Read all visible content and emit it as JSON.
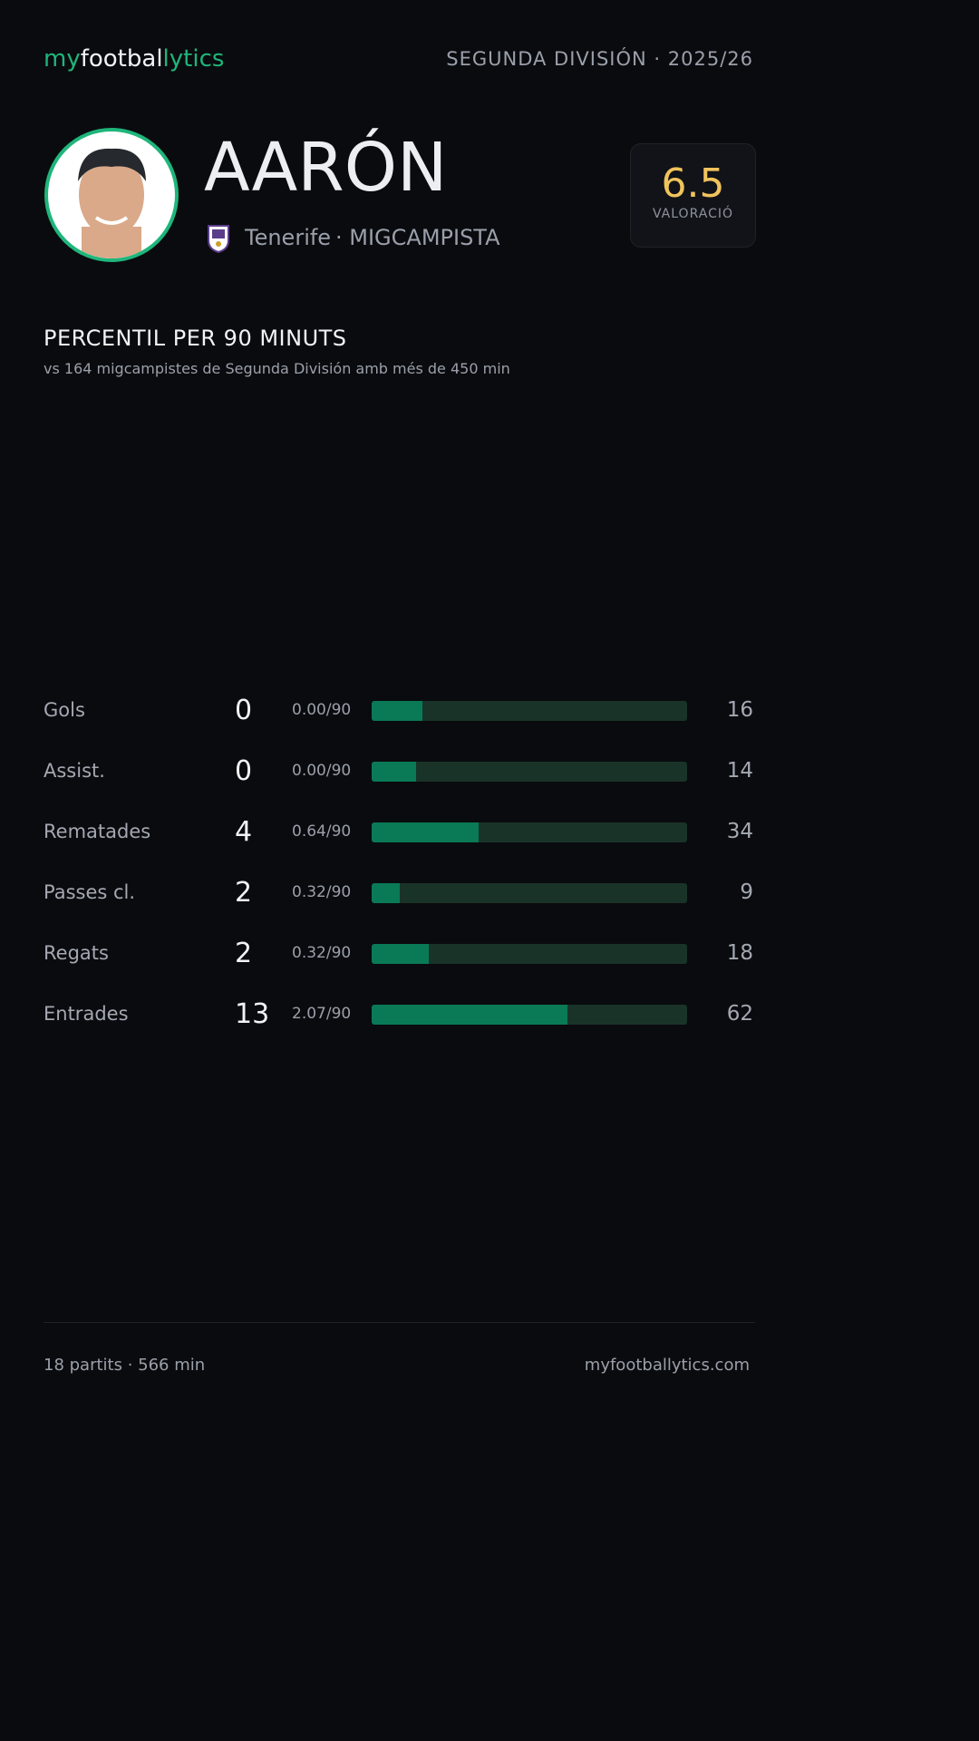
{
  "header": {
    "logo": [
      "my",
      "footbal",
      "lytics"
    ],
    "league": "SEGUNDA DIVISIÓN · 2025/26"
  },
  "player": {
    "name": "AARÓN",
    "team": "Tenerife",
    "position": "· MIGCAMPISTA",
    "rating": "6.5",
    "rating_label": "VALORACIÓ"
  },
  "section": {
    "title": "PERCENTIL PER 90 MINUTS",
    "subtitle": "vs 164 migcampistes de Segunda División amb més de 450 min"
  },
  "stats": [
    {
      "label": "Gols",
      "total": 0,
      "per90": "0.00/90",
      "percentile": 16
    },
    {
      "label": "Assist.",
      "total": 0,
      "per90": "0.00/90",
      "percentile": 14
    },
    {
      "label": "Rematades",
      "total": 4,
      "per90": "0.64/90",
      "percentile": 34
    },
    {
      "label": "Passes cl.",
      "total": 2,
      "per90": "0.32/90",
      "percentile": 9
    },
    {
      "label": "Regats",
      "total": 2,
      "per90": "0.32/90",
      "percentile": 18
    },
    {
      "label": "Entrades",
      "total": 13,
      "per90": "2.07/90",
      "percentile": 62
    }
  ],
  "footer": {
    "summary": "18 partits · 566 min",
    "site": "myfootballytics.com"
  }
}
